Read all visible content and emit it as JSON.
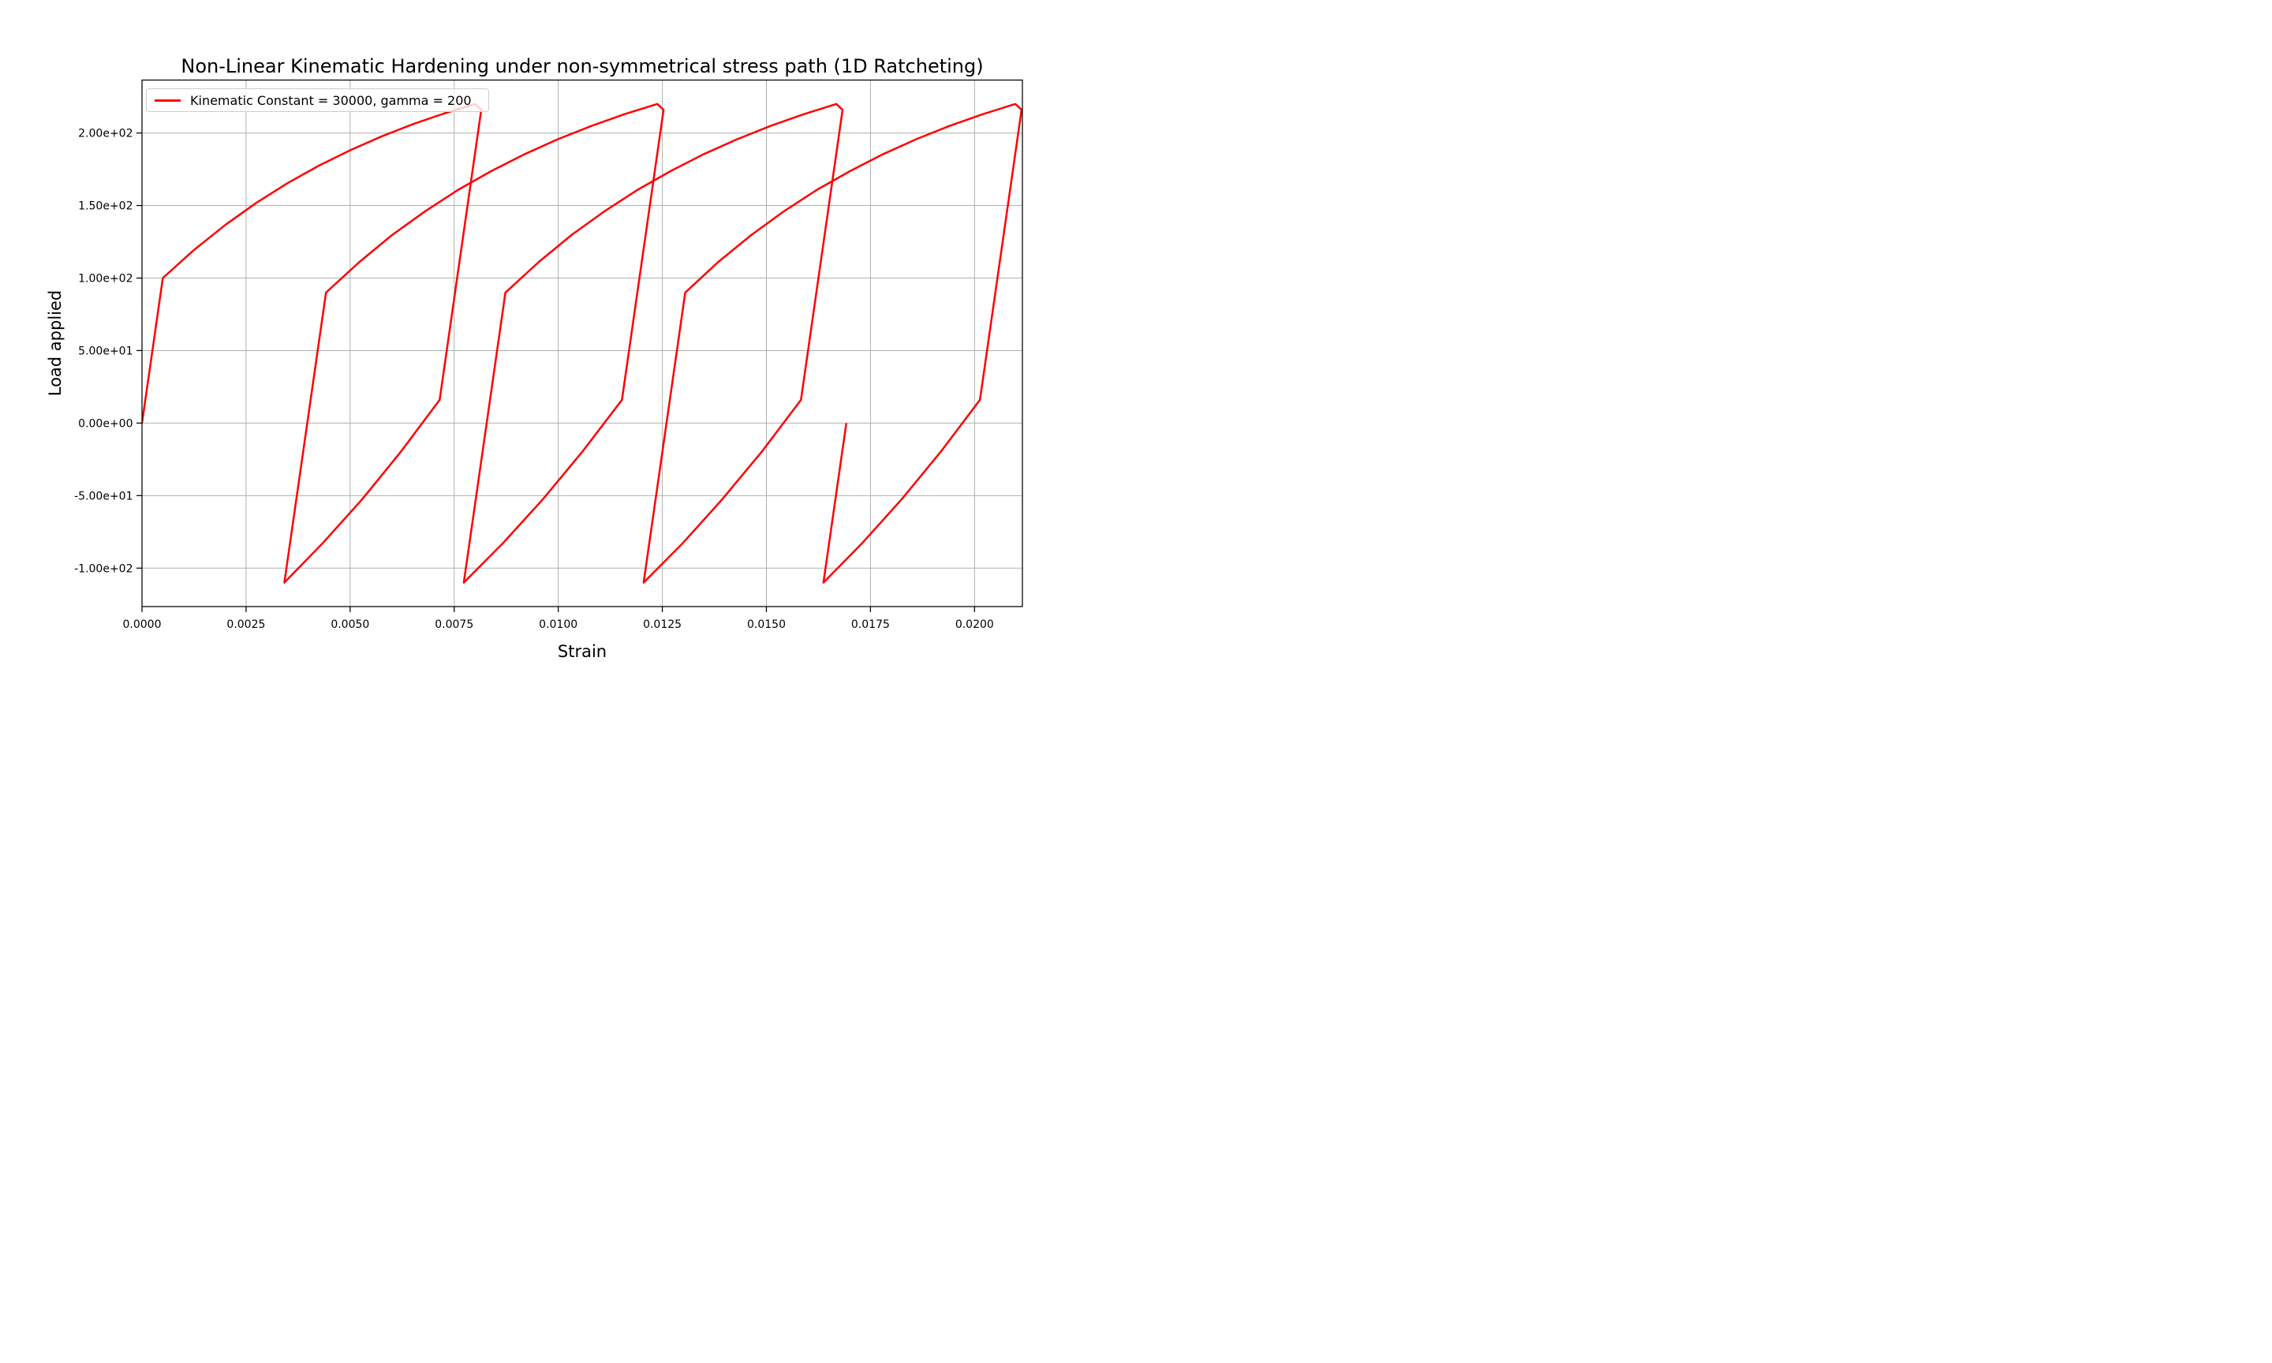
{
  "figure": {
    "background": "#ffffff",
    "text_color": "#000000"
  },
  "chart_data": {
    "type": "line",
    "title": "Non-Linear Kinematic Hardening under non-symmetrical stress path (1D Ratcheting)",
    "xlabel": "Strain",
    "ylabel": "Load applied",
    "xlim": [
      0.0,
      0.02115
    ],
    "ylim": [
      -126.5,
      236.5
    ],
    "grid": true,
    "grid_color": "#b0b0b0",
    "spine_color": "#000000",
    "legend": {
      "position": "upper left",
      "entries": [
        {
          "label": "Kinematic Constant = 30000, gamma = 200",
          "color": "#ff0000"
        }
      ]
    },
    "xticks": {
      "values": [
        0.0,
        0.0025,
        0.005,
        0.0075,
        0.01,
        0.0125,
        0.015,
        0.0175,
        0.02
      ],
      "labels": [
        "0.0000",
        "0.0025",
        "0.0050",
        "0.0075",
        "0.0100",
        "0.0125",
        "0.0150",
        "0.0175",
        "0.0200"
      ]
    },
    "yticks": {
      "values": [
        200,
        150,
        100,
        50,
        0,
        -50,
        -100
      ],
      "labels": [
        "2.00e+02",
        "1.50e+02",
        "1.00e+02",
        "5.00e+01",
        "0.00e+00",
        "-5.00e+01",
        "-1.00e+02"
      ]
    },
    "annotations": {
      "cycle_peaks_strain": [
        0.008,
        0.01238,
        0.01668,
        0.02098
      ],
      "cycle_peak_stress": 220,
      "cycle_valleys_strain": [
        0.00342,
        0.00773,
        0.01205,
        0.01637
      ],
      "cycle_valley_stress": -110,
      "final_point": [
        0.01692,
        0
      ]
    },
    "series": [
      {
        "name": "Kinematic Constant = 30000, gamma = 200",
        "color": "#ff0000",
        "linewidth": 5,
        "points": [
          [
            0.0,
            0
          ],
          [
            0.0005,
            100
          ],
          [
            0.00125,
            119.4
          ],
          [
            0.002,
            136.6
          ],
          [
            0.00275,
            151.9
          ],
          [
            0.0035,
            165.5
          ],
          [
            0.00425,
            177.5
          ],
          [
            0.005,
            188.1
          ],
          [
            0.00575,
            197.6
          ],
          [
            0.0065,
            206.0
          ],
          [
            0.00725,
            213.4
          ],
          [
            0.008,
            220
          ],
          [
            0.00815,
            216
          ],
          [
            0.00715,
            16
          ],
          [
            0.00622,
            -19.7
          ],
          [
            0.00529,
            -52.5
          ],
          [
            0.00435,
            -82.5
          ],
          [
            0.00342,
            -110
          ],
          [
            0.00442,
            90
          ],
          [
            0.00522,
            111.0
          ],
          [
            0.00601,
            129.7
          ],
          [
            0.00681,
            146.2
          ],
          [
            0.0076,
            160.9
          ],
          [
            0.0084,
            173.9
          ],
          [
            0.0092,
            185.5
          ],
          [
            0.00999,
            195.7
          ],
          [
            0.01079,
            204.8
          ],
          [
            0.01158,
            212.9
          ],
          [
            0.01238,
            220
          ],
          [
            0.01253,
            216
          ],
          [
            0.01153,
            16
          ],
          [
            0.01058,
            -19.7
          ],
          [
            0.00963,
            -52.5
          ],
          [
            0.00868,
            -82.5
          ],
          [
            0.00773,
            -110
          ],
          [
            0.00873,
            90
          ],
          [
            0.00953,
            111.0
          ],
          [
            0.01032,
            129.7
          ],
          [
            0.01112,
            146.2
          ],
          [
            0.01191,
            160.9
          ],
          [
            0.01271,
            173.9
          ],
          [
            0.0135,
            185.5
          ],
          [
            0.0143,
            195.7
          ],
          [
            0.01509,
            204.8
          ],
          [
            0.01589,
            212.9
          ],
          [
            0.01668,
            220
          ],
          [
            0.01683,
            216
          ],
          [
            0.01583,
            16
          ],
          [
            0.01489,
            -19.7
          ],
          [
            0.01394,
            -52.5
          ],
          [
            0.013,
            -82.5
          ],
          [
            0.01205,
            -110
          ],
          [
            0.01305,
            90
          ],
          [
            0.01384,
            111.0
          ],
          [
            0.01464,
            129.7
          ],
          [
            0.01543,
            146.2
          ],
          [
            0.01622,
            160.9
          ],
          [
            0.01702,
            173.9
          ],
          [
            0.01781,
            185.5
          ],
          [
            0.0186,
            195.7
          ],
          [
            0.01939,
            204.8
          ],
          [
            0.02019,
            212.9
          ],
          [
            0.02098,
            220
          ],
          [
            0.02113,
            216
          ],
          [
            0.02013,
            16
          ],
          [
            0.01919,
            -19.7
          ],
          [
            0.01825,
            -52.5
          ],
          [
            0.01731,
            -82.5
          ],
          [
            0.01637,
            -110
          ],
          [
            0.01692,
            0
          ]
        ]
      }
    ]
  }
}
